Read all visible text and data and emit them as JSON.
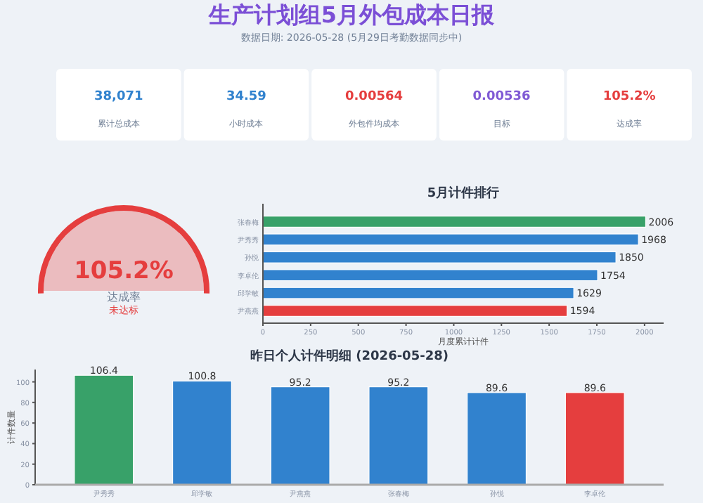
{
  "chart_data": [
    {
      "type": "other",
      "title": "生产计划组5月外包成本日报",
      "subtitle": "数据日期: 2026-05-28 (5月29日考勤数据同步中)",
      "colors": [
        "#3182ce",
        "#3182ce",
        "#e53e3e",
        "#805ad5",
        "#e53e3e"
      ],
      "annotations": [
        "38,071",
        "累计总成本",
        "34.59",
        "小时成本",
        "0.00564",
        "外包件均成本",
        "0.00536",
        "目标",
        "105.2%",
        "达成率"
      ]
    },
    {
      "type": "other",
      "colors": [
        "#e53e3e",
        "#e53e3e",
        "#718096",
        "#e53e3e"
      ],
      "annotations": [
        "105.2%",
        "达成率",
        "未达标"
      ]
    },
    {
      "type": "bar",
      "orientation": "horizontal",
      "title": "5月计件排行",
      "xlabel": "月度累计计件",
      "categories": [
        "张春梅",
        "尹秀秀",
        "孙悦",
        "李卓伦",
        "邱学敏",
        "尹燕燕"
      ],
      "values": [
        2006,
        1968,
        1850,
        1754,
        1629,
        1594
      ],
      "colors": [
        "#38a169",
        "#3182ce",
        "#3182ce",
        "#3182ce",
        "#3182ce",
        "#e53e3e"
      ],
      "xlim": [
        0,
        2100
      ],
      "xticks": [
        0,
        250,
        500,
        750,
        1000,
        1250,
        1500,
        1750,
        2000
      ],
      "data_labels": true,
      "grid": false
    },
    {
      "type": "bar",
      "title": "昨日个人计件明细 (2026-05-28)",
      "ylabel": "计件数量",
      "categories": [
        "尹秀秀",
        "邱学敏",
        "尹燕燕",
        "张春梅",
        "孙悦",
        "李卓伦"
      ],
      "values": [
        106.4,
        100.8,
        95.2,
        95.2,
        89.6,
        89.6
      ],
      "colors": [
        "#38a169",
        "#3182ce",
        "#3182ce",
        "#3182ce",
        "#3182ce",
        "#e53e3e"
      ],
      "ylim": [
        0,
        112
      ],
      "yticks": [
        0,
        20,
        40,
        60,
        80,
        100
      ],
      "data_labels": true,
      "grid": false
    }
  ]
}
